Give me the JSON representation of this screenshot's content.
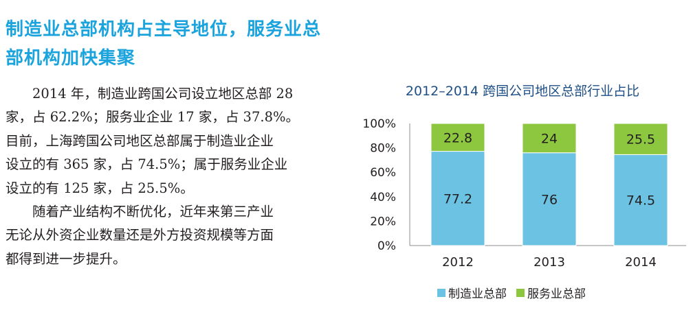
{
  "heading": {
    "lines": [
      "制造业总部机构占主导地位，服务业总",
      "部机构加快集聚"
    ]
  },
  "body": {
    "lines": [
      "　　2014 年，制造业跨国公司设立地区总部 28",
      "家，占 62.2%；服务业企业 17 家，占 37.8%。",
      "目前，上海跨国公司地区总部属于制造业企业",
      "设立的有 365 家，占 74.5%；属于服务业企业",
      "设立的有 125 家，占 25.5%。",
      "　　随着产业结构不断优化，近年来第三产业",
      "无论从外资企业数量还是外方投资规模等方面",
      "都得到进一步提升。"
    ]
  },
  "colors": {
    "heading": "#1aa3dc",
    "manufacturing": "#6cc2e3",
    "services": "#8dc63f",
    "chart_title": "#1d4f86"
  },
  "chart_data": {
    "type": "bar",
    "stacked": true,
    "title": "2012–2014 跨国公司地区总部行业占比",
    "categories": [
      "2012",
      "2013",
      "2014"
    ],
    "series": [
      {
        "name": "制造业总部",
        "values": [
          77.2,
          76,
          74.5
        ],
        "labels": [
          "77.2",
          "76",
          "74.5"
        ],
        "color": "#6cc2e3"
      },
      {
        "name": "服务业总部",
        "values": [
          22.8,
          24,
          25.5
        ],
        "labels": [
          "22.8",
          "24",
          "25.5"
        ],
        "color": "#8dc63f"
      }
    ],
    "y_ticks": [
      "0%",
      "20%",
      "40%",
      "60%",
      "80%",
      "100%"
    ],
    "ylim": [
      0,
      100
    ],
    "legend_position": "bottom",
    "grid": false
  }
}
